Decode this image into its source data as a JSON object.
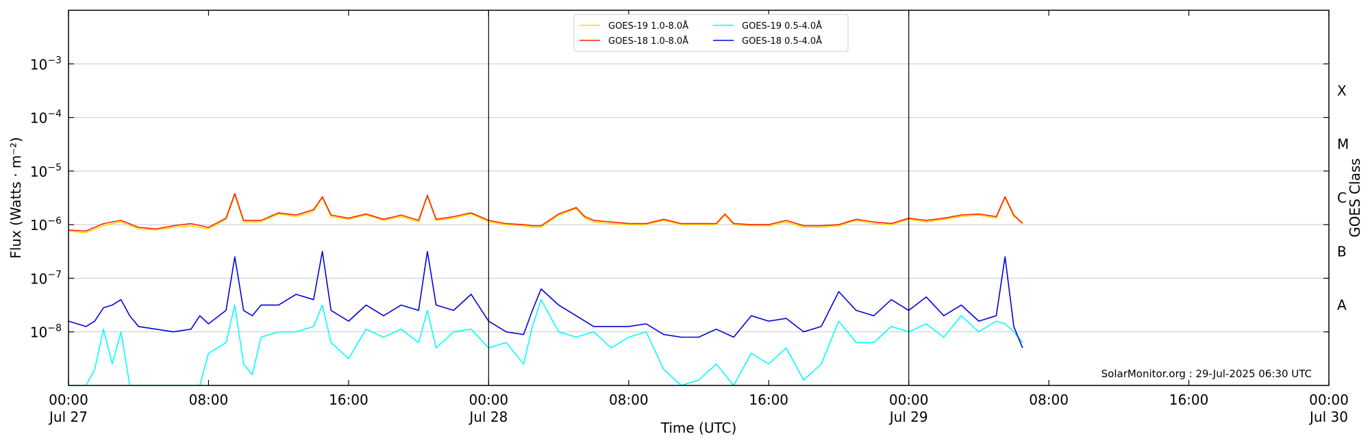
{
  "chart_data": {
    "type": "line",
    "xlabel": "Time (UTC)",
    "ylabel": "Flux (Watts · m⁻²)",
    "ylabel_right": "GOES Class",
    "y_scale": "log",
    "ylim": [
      1e-09,
      0.01
    ],
    "xlim": [
      "2025-07-27 00:00",
      "2025-07-30 00:00"
    ],
    "x_ticks": [
      {
        "time": "2025-07-27 00:00",
        "label": "00:00",
        "date": "Jul 27"
      },
      {
        "time": "2025-07-27 08:00",
        "label": "08:00",
        "date": ""
      },
      {
        "time": "2025-07-27 16:00",
        "label": "16:00",
        "date": ""
      },
      {
        "time": "2025-07-28 00:00",
        "label": "00:00",
        "date": "Jul 28"
      },
      {
        "time": "2025-07-28 08:00",
        "label": "08:00",
        "date": ""
      },
      {
        "time": "2025-07-28 16:00",
        "label": "16:00",
        "date": ""
      },
      {
        "time": "2025-07-29 00:00",
        "label": "00:00",
        "date": "Jul 29"
      },
      {
        "time": "2025-07-29 08:00",
        "label": "08:00",
        "date": ""
      },
      {
        "time": "2025-07-29 16:00",
        "label": "16:00",
        "date": ""
      },
      {
        "time": "2025-07-30 00:00",
        "label": "00:00",
        "date": "Jul 30"
      }
    ],
    "y_ticks": [
      {
        "value": 1e-08,
        "base": "10",
        "exp": "−8"
      },
      {
        "value": 1e-07,
        "base": "10",
        "exp": "−7"
      },
      {
        "value": 1e-06,
        "base": "10",
        "exp": "−6"
      },
      {
        "value": 1e-05,
        "base": "10",
        "exp": "−5"
      },
      {
        "value": 0.0001,
        "base": "10",
        "exp": "−4"
      },
      {
        "value": 0.001,
        "base": "10",
        "exp": "−3"
      }
    ],
    "goes_classes": [
      {
        "label": "A",
        "value": 3.16e-08
      },
      {
        "label": "B",
        "value": 3.16e-07
      },
      {
        "label": "C",
        "value": 3.16e-06
      },
      {
        "label": "M",
        "value": 3.16e-05
      },
      {
        "label": "X",
        "value": 0.000316
      }
    ],
    "grid": true,
    "day_boundaries": [
      "2025-07-28 00:00",
      "2025-07-29 00:00"
    ],
    "legend": {
      "placement": "top-center",
      "entries": [
        {
          "label": "GOES-19 1.0-8.0Å",
          "color": "#FFD700"
        },
        {
          "label": "GOES-18 1.0-8.0Å",
          "color": "#FF2200"
        },
        {
          "label": "GOES-19 0.5-4.0Å",
          "color": "#00FFFF"
        },
        {
          "label": "GOES-18 0.5-4.0Å",
          "color": "#0000DD"
        }
      ]
    },
    "series": [
      {
        "name": "GOES-19 1.0-8.0Å",
        "color": "#FFD700",
        "hours_since_start": [
          0,
          1,
          2,
          3,
          4,
          5,
          6,
          7,
          8,
          9,
          9.5,
          10,
          11,
          12,
          13,
          14,
          14.5,
          15,
          16,
          17,
          18,
          19,
          20,
          20.5,
          21,
          22,
          23,
          24,
          25,
          26,
          26.5,
          27,
          28,
          29,
          29.5,
          30,
          31,
          32,
          33,
          34,
          35,
          36,
          37,
          37.5,
          38,
          39,
          40,
          41,
          42,
          43,
          44,
          45,
          46,
          47,
          48,
          49,
          50,
          51,
          52,
          53,
          53.5,
          54,
          54.5
        ],
        "values_exp10": [
          -6.12,
          -6.15,
          -6.02,
          -5.95,
          -6.08,
          -6.1,
          -6.05,
          -6.02,
          -6.08,
          -5.9,
          -5.45,
          -5.95,
          -5.95,
          -5.8,
          -5.85,
          -5.75,
          -5.5,
          -5.85,
          -5.9,
          -5.82,
          -5.92,
          -5.85,
          -5.95,
          -5.48,
          -5.92,
          -5.88,
          -5.8,
          -5.95,
          -6.0,
          -6.02,
          -6.05,
          -6.05,
          -5.82,
          -5.7,
          -5.88,
          -5.95,
          -5.98,
          -6.0,
          -6.0,
          -5.92,
          -6.0,
          -6.0,
          -6.0,
          -5.82,
          -6.0,
          -6.02,
          -6.02,
          -5.95,
          -6.05,
          -6.05,
          -6.02,
          -5.92,
          -5.98,
          -6.0,
          -5.9,
          -5.95,
          -5.9,
          -5.85,
          -5.82,
          -5.88,
          -5.5,
          -5.85,
          -5.95
        ]
      },
      {
        "name": "GOES-18 1.0-8.0Å",
        "color": "#FF2200",
        "hours_since_start": [
          0,
          1,
          2,
          3,
          4,
          5,
          6,
          7,
          8,
          9,
          9.5,
          10,
          11,
          12,
          13,
          14,
          14.5,
          15,
          16,
          17,
          18,
          19,
          20,
          20.5,
          21,
          22,
          23,
          24,
          25,
          26,
          26.5,
          27,
          28,
          29,
          29.5,
          30,
          31,
          32,
          33,
          34,
          35,
          36,
          37,
          37.5,
          38,
          39,
          40,
          41,
          42,
          43,
          44,
          45,
          46,
          47,
          48,
          49,
          50,
          51,
          52,
          53,
          53.5,
          54,
          54.5
        ],
        "values_exp10": [
          -6.1,
          -6.12,
          -5.98,
          -5.92,
          -6.05,
          -6.08,
          -6.02,
          -5.98,
          -6.05,
          -5.88,
          -5.42,
          -5.92,
          -5.92,
          -5.78,
          -5.82,
          -5.72,
          -5.48,
          -5.82,
          -5.88,
          -5.8,
          -5.9,
          -5.82,
          -5.92,
          -5.45,
          -5.9,
          -5.85,
          -5.78,
          -5.92,
          -5.98,
          -6.0,
          -6.02,
          -6.02,
          -5.8,
          -5.68,
          -5.85,
          -5.92,
          -5.95,
          -5.98,
          -5.98,
          -5.9,
          -5.98,
          -5.98,
          -5.98,
          -5.8,
          -5.98,
          -6.0,
          -6.0,
          -5.92,
          -6.02,
          -6.02,
          -6.0,
          -5.9,
          -5.95,
          -5.98,
          -5.88,
          -5.92,
          -5.88,
          -5.82,
          -5.8,
          -5.85,
          -5.48,
          -5.82,
          -5.98
        ]
      },
      {
        "name": "GOES-19 0.5-4.0Å",
        "color": "#00FFFF",
        "hours_since_start": [
          0,
          0.5,
          1,
          1.5,
          2,
          2.5,
          3,
          3.5,
          4,
          5,
          6,
          7,
          7.5,
          8,
          9,
          9.5,
          10,
          10.5,
          11,
          12,
          13,
          14,
          14.5,
          15,
          16,
          17,
          18,
          19,
          20,
          20.5,
          21,
          22,
          23,
          24,
          25,
          26,
          26.5,
          27,
          28,
          29,
          30,
          31,
          32,
          33,
          34,
          35,
          36,
          37,
          38,
          39,
          40,
          41,
          42,
          43,
          44,
          45,
          46,
          47,
          48,
          49,
          50,
          51,
          52,
          53,
          53.5,
          54,
          54.5
        ],
        "values_exp10": [
          -9.0,
          -9.0,
          -9.0,
          -8.7,
          -7.95,
          -8.6,
          -8.0,
          -9.0,
          -9.0,
          -9.0,
          -9.0,
          -9.0,
          -9.0,
          -8.4,
          -8.2,
          -7.5,
          -8.6,
          -8.8,
          -8.1,
          -8.0,
          -8.0,
          -7.9,
          -7.5,
          -8.2,
          -8.5,
          -7.95,
          -8.1,
          -7.95,
          -8.2,
          -7.6,
          -8.3,
          -8.0,
          -7.95,
          -8.3,
          -8.2,
          -8.6,
          -7.9,
          -7.4,
          -8.0,
          -8.1,
          -8.0,
          -8.3,
          -8.1,
          -8.0,
          -8.7,
          -9.0,
          -8.9,
          -8.6,
          -9.0,
          -8.4,
          -8.6,
          -8.3,
          -8.9,
          -8.6,
          -7.8,
          -8.2,
          -8.2,
          -7.9,
          -8.0,
          -7.85,
          -8.1,
          -7.7,
          -8.0,
          -7.8,
          -7.85,
          -8.0,
          -8.2
        ]
      },
      {
        "name": "GOES-18 0.5-4.0Å",
        "color": "#0000DD",
        "hours_since_start": [
          0,
          0.5,
          1,
          1.5,
          2,
          2.5,
          3,
          3.5,
          4,
          5,
          6,
          7,
          7.5,
          8,
          9,
          9.5,
          10,
          10.5,
          11,
          12,
          13,
          14,
          14.5,
          15,
          16,
          17,
          18,
          19,
          20,
          20.5,
          21,
          22,
          23,
          24,
          25,
          26,
          26.5,
          27,
          28,
          29,
          30,
          31,
          32,
          33,
          34,
          35,
          36,
          37,
          38,
          39,
          40,
          41,
          42,
          43,
          44,
          45,
          46,
          47,
          48,
          49,
          50,
          51,
          52,
          53,
          53.5,
          54,
          54.5
        ],
        "values_exp10": [
          -7.8,
          -7.85,
          -7.9,
          -7.8,
          -7.55,
          -7.5,
          -7.4,
          -7.7,
          -7.9,
          -7.95,
          -8.0,
          -7.95,
          -7.7,
          -7.85,
          -7.6,
          -6.6,
          -7.6,
          -7.7,
          -7.5,
          -7.5,
          -7.3,
          -7.4,
          -6.5,
          -7.6,
          -7.8,
          -7.5,
          -7.7,
          -7.5,
          -7.6,
          -6.5,
          -7.5,
          -7.6,
          -7.3,
          -7.8,
          -8.0,
          -8.05,
          -7.6,
          -7.2,
          -7.5,
          -7.7,
          -7.9,
          -7.9,
          -7.9,
          -7.85,
          -8.05,
          -8.1,
          -8.1,
          -7.95,
          -8.1,
          -7.7,
          -7.8,
          -7.75,
          -8.0,
          -7.9,
          -7.25,
          -7.6,
          -7.7,
          -7.4,
          -7.6,
          -7.35,
          -7.7,
          -7.5,
          -7.8,
          -7.7,
          -6.6,
          -7.9,
          -8.3
        ]
      }
    ],
    "credit": "SolarMonitor.org : 29-Jul-2025 06:30 UTC"
  }
}
